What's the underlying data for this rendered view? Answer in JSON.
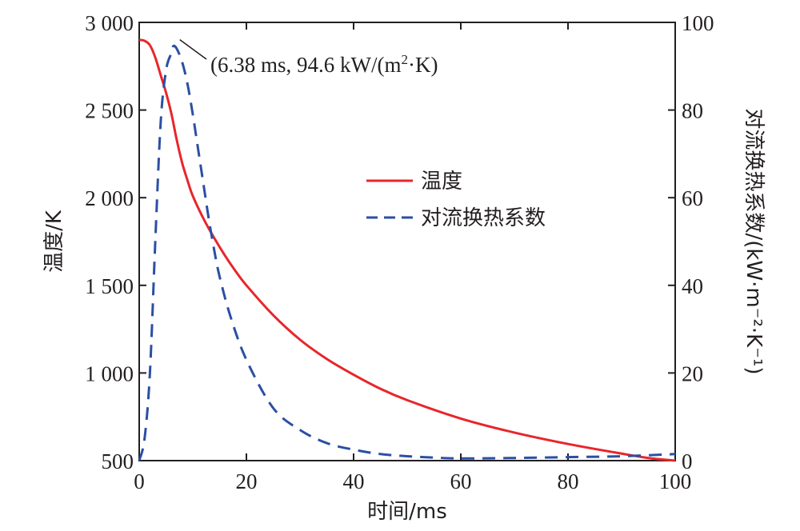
{
  "chart_data": {
    "type": "line",
    "xlabel": "时间/ms",
    "ylabel_left": "温度/K",
    "ylabel_right": "对流换热系数/(kW·m⁻²·K⁻¹)",
    "xlim": [
      0,
      100
    ],
    "ylim_left": [
      500,
      3000
    ],
    "ylim_right": [
      0,
      100
    ],
    "x_ticks": [
      "0",
      "20",
      "40",
      "60",
      "80",
      "100"
    ],
    "y_left_ticks": [
      "500",
      "1 000",
      "1 500",
      "2 000",
      "2 500",
      "3 000"
    ],
    "y_right_ticks": [
      "0",
      "20",
      "40",
      "60",
      "80",
      "100"
    ],
    "grid": false,
    "legend_position": "center-right",
    "series": [
      {
        "name": "温度",
        "axis": "left",
        "style": "solid",
        "color": "#e8262b",
        "x": [
          0,
          1,
          2,
          3,
          4,
          5,
          6,
          7,
          8,
          9,
          10,
          12,
          14,
          16,
          18,
          20,
          25,
          30,
          35,
          40,
          45,
          50,
          60,
          70,
          80,
          90,
          95,
          100
        ],
        "y": [
          2900,
          2895,
          2870,
          2800,
          2700,
          2600,
          2480,
          2330,
          2200,
          2100,
          2010,
          1880,
          1770,
          1670,
          1580,
          1500,
          1330,
          1190,
          1080,
          990,
          910,
          845,
          740,
          660,
          595,
          540,
          515,
          500
        ]
      },
      {
        "name": "对流换热系数",
        "axis": "right",
        "style": "dashed",
        "color": "#2b4fa3",
        "x": [
          0,
          1,
          2,
          3,
          4,
          5,
          6,
          6.38,
          7,
          8,
          9,
          10,
          11,
          12,
          13,
          14,
          15,
          17,
          20,
          25,
          30,
          35,
          40,
          45,
          50,
          55,
          60,
          70,
          80,
          90,
          100
        ],
        "y": [
          0,
          5,
          20,
          50,
          77,
          89,
          93,
          94.6,
          94,
          91,
          86,
          79,
          71,
          63,
          55,
          48,
          42,
          33,
          23,
          12,
          7,
          4,
          2.5,
          1.5,
          1.0,
          0.7,
          0.5,
          0.6,
          0.8,
          1.0,
          1.5
        ]
      }
    ],
    "annotation": {
      "label": "(6.38 ms, 94.6 kW/(m",
      "sup": "2",
      "tail": "·K)",
      "x": 6.38,
      "y": 94.6,
      "axis": "right"
    }
  }
}
